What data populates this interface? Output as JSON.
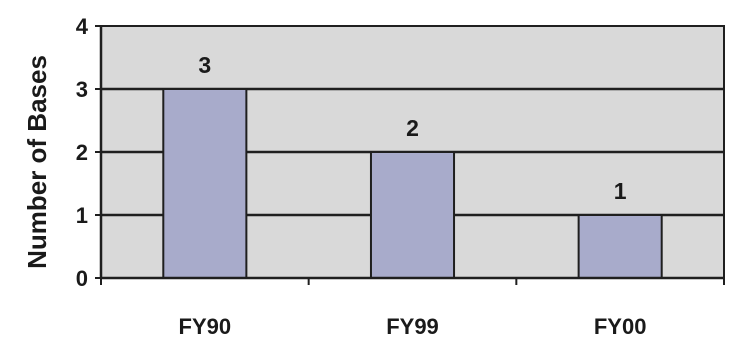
{
  "chart_data": {
    "type": "bar",
    "categories": [
      "FY90",
      "FY99",
      "FY00"
    ],
    "values": [
      3,
      2,
      1
    ],
    "data_labels": [
      "3",
      "2",
      "1"
    ],
    "ylabel": "Number of Bases",
    "xlabel": "",
    "ylim": [
      0,
      4
    ],
    "yticks": [
      "0",
      "1",
      "2",
      "3",
      "4"
    ],
    "grid": true,
    "legend": "none",
    "colors": {
      "bar_fill": "#a8abcb",
      "bar_stroke": "#1f1f1f",
      "plot_background": "#d9d9d9",
      "gridline": "#1f1f1f"
    }
  }
}
